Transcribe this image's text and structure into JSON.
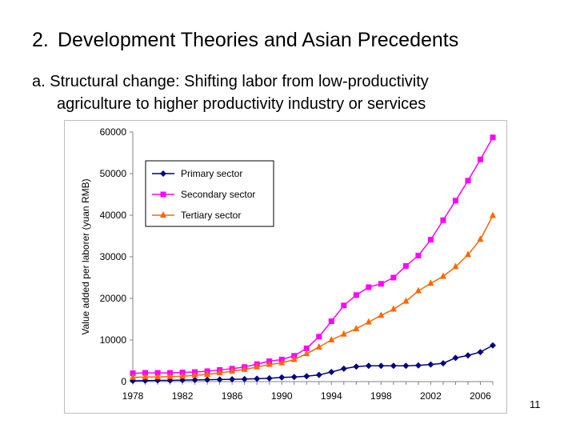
{
  "slide": {
    "title_number": "2.",
    "title_text": "Development Theories and Asian Precedents",
    "subtitle_line1": "a. Structural change: Shifting labor from low-productivity",
    "subtitle_line2": "agriculture to higher productivity industry or services",
    "page_number": "11"
  },
  "chart_data": {
    "type": "line",
    "title": "",
    "xlabel": "",
    "ylabel": "Value added per laborer (yuan RMB)",
    "ylim": [
      0,
      60000
    ],
    "yticks": [
      0,
      10000,
      20000,
      30000,
      40000,
      50000,
      60000
    ],
    "xticks": [
      1978,
      1982,
      1986,
      1990,
      1994,
      1998,
      2002,
      2006
    ],
    "xlim": [
      1978,
      2007
    ],
    "grid": false,
    "legend_position": "top-left",
    "x": [
      1978,
      1979,
      1980,
      1981,
      1982,
      1983,
      1984,
      1985,
      1986,
      1987,
      1988,
      1989,
      1990,
      1991,
      1992,
      1993,
      1994,
      1995,
      1996,
      1997,
      1998,
      1999,
      2000,
      2001,
      2002,
      2003,
      2004,
      2005,
      2006,
      2007
    ],
    "series": [
      {
        "name": "Primary sector",
        "color": "#000080",
        "marker": "diamond",
        "values": [
          200,
          250,
          300,
          300,
          350,
          400,
          450,
          500,
          550,
          600,
          700,
          800,
          1000,
          1100,
          1300,
          1600,
          2300,
          3100,
          3600,
          3800,
          3800,
          3800,
          3800,
          3900,
          4100,
          4400,
          5700,
          6300,
          7100,
          8700
        ]
      },
      {
        "name": "Secondary sector",
        "color": "#ff00ff",
        "marker": "square",
        "values": [
          2000,
          2100,
          2100,
          2100,
          2200,
          2300,
          2500,
          2800,
          3100,
          3500,
          4200,
          4900,
          5300,
          6200,
          8000,
          10800,
          14500,
          18300,
          20800,
          22700,
          23500,
          25000,
          27800,
          30300,
          34100,
          38800,
          43500,
          48300,
          53400,
          58700
        ]
      },
      {
        "name": "Tertiary sector",
        "color": "#ff6600",
        "marker": "triangle",
        "values": [
          1000,
          1100,
          1100,
          1200,
          1300,
          1500,
          1700,
          2100,
          2500,
          2900,
          3500,
          4100,
          4500,
          5300,
          6700,
          8300,
          10000,
          11400,
          12700,
          14300,
          15900,
          17400,
          19300,
          21800,
          23600,
          25300,
          27600,
          30500,
          34200,
          39900
        ]
      }
    ]
  }
}
